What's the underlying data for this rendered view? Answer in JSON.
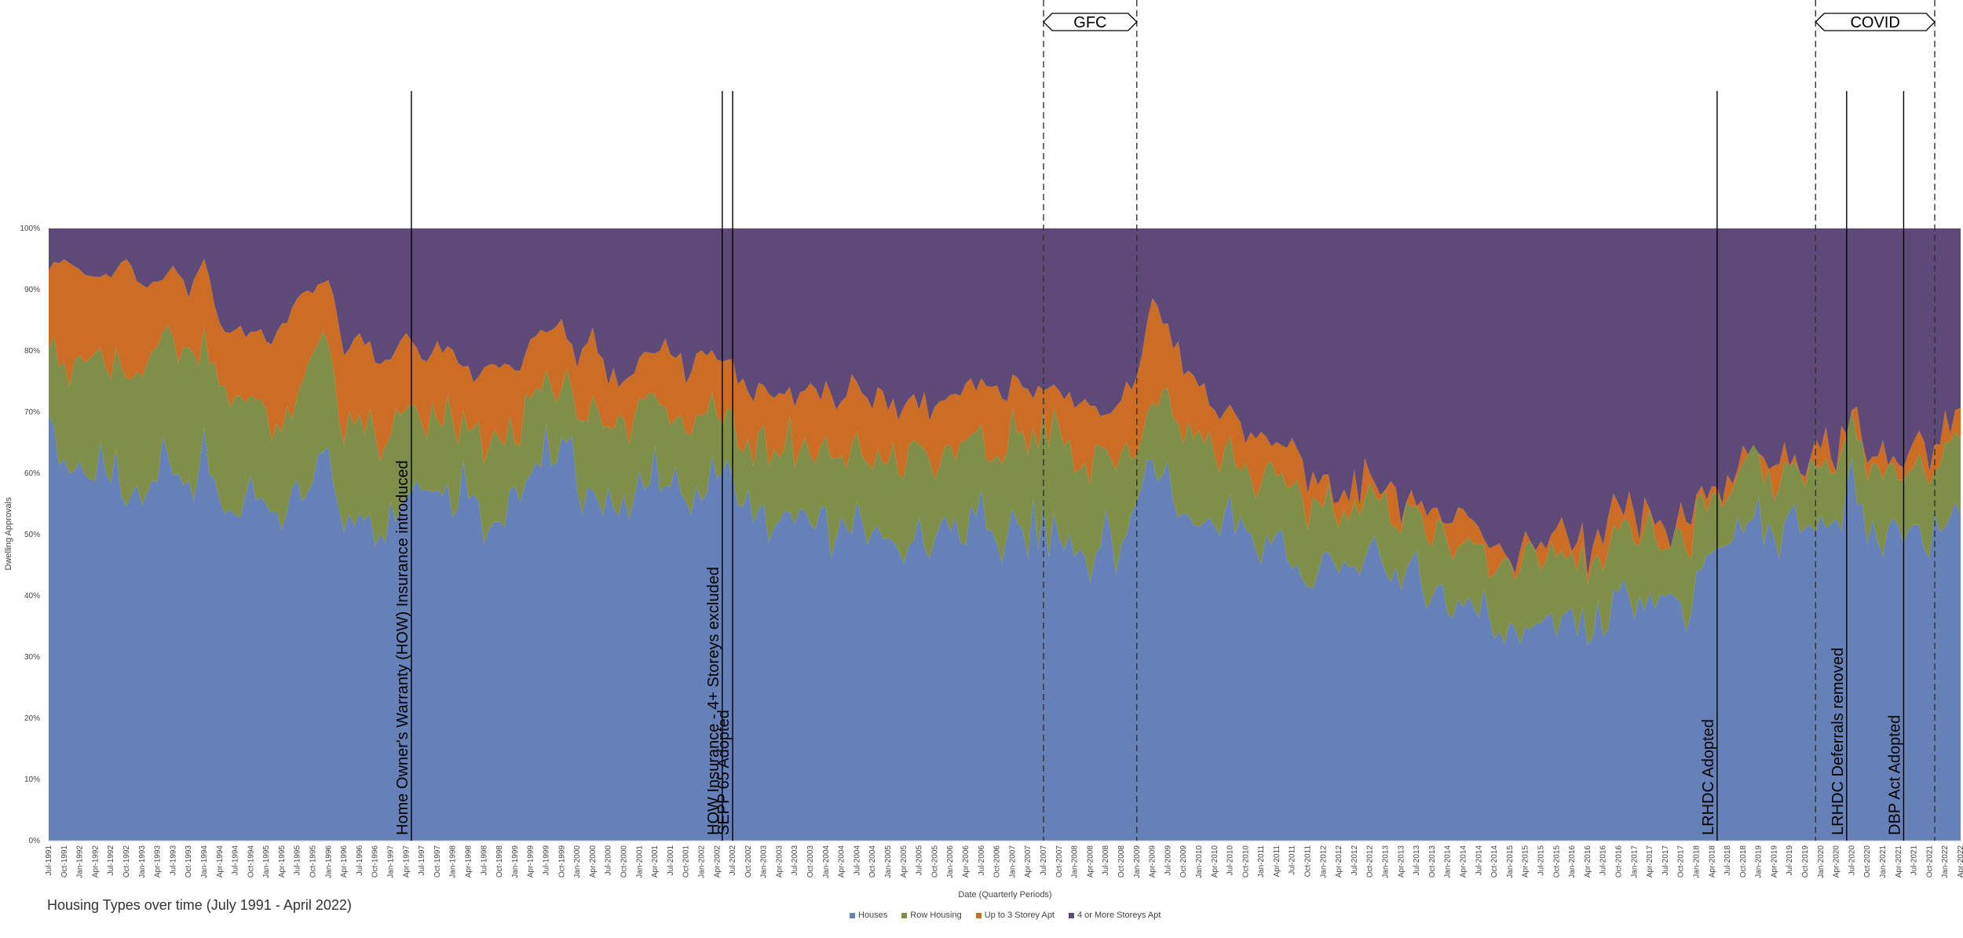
{
  "caption": "Housing Types over time (July 1991 - April 2022)",
  "chart_data": {
    "type": "area",
    "stacked": "percent",
    "title": "",
    "xlabel": "Date (Quarterly Periods)",
    "ylabel": "Dwelling Approvals",
    "ylim": [
      0,
      100
    ],
    "yticks": [
      "0%",
      "10%",
      "20%",
      "30%",
      "40%",
      "50%",
      "60%",
      "70%",
      "80%",
      "90%",
      "100%"
    ],
    "x_start": "1991-07",
    "x_end": "2022-04",
    "x_resolution": "monthly",
    "x_tick_labels": [
      "Jul-1991",
      "Oct-1991",
      "Jan-1992",
      "Apr-1992",
      "Jul-1992",
      "Oct-1992",
      "Jan-1993",
      "Apr-1993",
      "Jul-1993",
      "Oct-1993",
      "Jan-1994",
      "Apr-1994",
      "Jul-1994",
      "Oct-1994",
      "Jan-1995",
      "Apr-1995",
      "Jul-1995",
      "Oct-1995",
      "Jan-1996",
      "Apr-1996",
      "Jul-1996",
      "Oct-1996",
      "Jan-1997",
      "Apr-1997",
      "Jul-1997",
      "Oct-1997",
      "Jan-1998",
      "Apr-1998",
      "Jul-1998",
      "Oct-1998",
      "Jan-1999",
      "Apr-1999",
      "Jul-1999",
      "Oct-1999",
      "Jan-2000",
      "Apr-2000",
      "Jul-2000",
      "Oct-2000",
      "Jan-2001",
      "Apr-2001",
      "Jul-2001",
      "Oct-2001",
      "Jan-2002",
      "Apr-2002",
      "Jul-2002",
      "Oct-2002",
      "Jan-2003",
      "Apr-2003",
      "Jul-2003",
      "Oct-2003",
      "Jan-2004",
      "Apr-2004",
      "Jul-2004",
      "Oct-2004",
      "Jan-2005",
      "Apr-2005",
      "Jul-2005",
      "Oct-2005",
      "Jan-2006",
      "Apr-2006",
      "Jul-2006",
      "Oct-2006",
      "Jan-2007",
      "Apr-2007",
      "Jul-2007",
      "Oct-2007",
      "Jan-2008",
      "Apr-2008",
      "Jul-2008",
      "Oct-2008",
      "Jan-2009",
      "Apr-2009",
      "Jul-2009",
      "Oct-2009",
      "Jan-2010",
      "Apr-2010",
      "Jul-2010",
      "Oct-2010",
      "Jan-2011",
      "Apr-2011",
      "Jul-2011",
      "Oct-2011",
      "Jan-2012",
      "Apr-2012",
      "Jul-2012",
      "Oct-2012",
      "Jan-2013",
      "Apr-2013",
      "Jul-2013",
      "Oct-2013",
      "Jan-2014",
      "Apr-2014",
      "Jul-2014",
      "Oct-2014",
      "Jan-2015",
      "Apr-2015",
      "Jul-2015",
      "Oct-2015",
      "Jan-2016",
      "Apr-2016",
      "Jul-2016",
      "Oct-2016",
      "Jan-2017",
      "Apr-2017",
      "Jul-2017",
      "Oct-2017",
      "Jan-2018",
      "Apr-2018",
      "Jul-2018",
      "Oct-2018",
      "Jan-2019",
      "Apr-2019",
      "Jul-2019",
      "Oct-2019",
      "Jan-2020",
      "Apr-2020",
      "Jul-2020",
      "Oct-2020",
      "Jan-2021",
      "Apr-2021",
      "Jul-2021",
      "Oct-2021",
      "Jan-2022",
      "Apr-2022"
    ],
    "series_order": [
      "Houses",
      "Row Housing",
      "Up to 3 Storey Apt",
      "4 or More Storeys Apt"
    ],
    "series_colors": [
      "#6581B8",
      "#7F8F48",
      "#CC6D26",
      "#5D4A78"
    ],
    "quarterly_series": {
      "x": [
        "Jul-1991",
        "Oct-1991",
        "Jan-1992",
        "Apr-1992",
        "Jul-1992",
        "Oct-1992",
        "Jan-1993",
        "Apr-1993",
        "Jul-1993",
        "Oct-1993",
        "Jan-1994",
        "Apr-1994",
        "Jul-1994",
        "Oct-1994",
        "Jan-1995",
        "Apr-1995",
        "Jul-1995",
        "Oct-1995",
        "Jan-1996",
        "Apr-1996",
        "Jul-1996",
        "Oct-1996",
        "Jan-1997",
        "Apr-1997",
        "Jul-1997",
        "Oct-1997",
        "Jan-1998",
        "Apr-1998",
        "Jul-1998",
        "Oct-1998",
        "Jan-1999",
        "Apr-1999",
        "Jul-1999",
        "Oct-1999",
        "Jan-2000",
        "Apr-2000",
        "Jul-2000",
        "Oct-2000",
        "Jan-2001",
        "Apr-2001",
        "Jul-2001",
        "Oct-2001",
        "Jan-2002",
        "Apr-2002",
        "Jul-2002",
        "Oct-2002",
        "Jan-2003",
        "Apr-2003",
        "Jul-2003",
        "Oct-2003",
        "Jan-2004",
        "Apr-2004",
        "Jul-2004",
        "Oct-2004",
        "Jan-2005",
        "Apr-2005",
        "Jul-2005",
        "Oct-2005",
        "Jan-2006",
        "Apr-2006",
        "Jul-2006",
        "Oct-2006",
        "Jan-2007",
        "Apr-2007",
        "Jul-2007",
        "Oct-2007",
        "Jan-2008",
        "Apr-2008",
        "Jul-2008",
        "Oct-2008",
        "Jan-2009",
        "Apr-2009",
        "Jul-2009",
        "Oct-2009",
        "Jan-2010",
        "Apr-2010",
        "Jul-2010",
        "Oct-2010",
        "Jan-2011",
        "Apr-2011",
        "Jul-2011",
        "Oct-2011",
        "Jan-2012",
        "Apr-2012",
        "Jul-2012",
        "Oct-2012",
        "Jan-2013",
        "Apr-2013",
        "Jul-2013",
        "Oct-2013",
        "Jan-2014",
        "Apr-2014",
        "Jul-2014",
        "Oct-2014",
        "Jan-2015",
        "Apr-2015",
        "Jul-2015",
        "Oct-2015",
        "Jan-2016",
        "Apr-2016",
        "Jul-2016",
        "Oct-2016",
        "Jan-2017",
        "Apr-2017",
        "Jul-2017",
        "Oct-2017",
        "Jan-2018",
        "Apr-2018",
        "Jul-2018",
        "Oct-2018",
        "Jan-2019",
        "Apr-2019",
        "Jul-2019",
        "Oct-2019",
        "Jan-2020",
        "Apr-2020",
        "Jul-2020",
        "Oct-2020",
        "Jan-2021",
        "Apr-2021",
        "Jul-2021",
        "Oct-2021",
        "Jan-2022",
        "Apr-2022"
      ],
      "series": [
        {
          "name": "Houses",
          "values": [
            67,
            61,
            63,
            59,
            62,
            55,
            58,
            60,
            63,
            58,
            62,
            55,
            52,
            57,
            54,
            52,
            61,
            60,
            62,
            52,
            57,
            52,
            53,
            58,
            60,
            58,
            57,
            58,
            54,
            52,
            56,
            60,
            63,
            67,
            58,
            59,
            54,
            55,
            60,
            58,
            59,
            57,
            58,
            58,
            58,
            52,
            52,
            49,
            53,
            50,
            52,
            50,
            52,
            50,
            50,
            47,
            50,
            48,
            52,
            51,
            53,
            49,
            52,
            50,
            53,
            49,
            50,
            46,
            49,
            47,
            53,
            62,
            58,
            53,
            54,
            52,
            55,
            50,
            48,
            50,
            46,
            43,
            45,
            42,
            45,
            44,
            46,
            43,
            42,
            42,
            38,
            40,
            38,
            36,
            36,
            33,
            38,
            35,
            36,
            35,
            37,
            42,
            40,
            38,
            40,
            38,
            42,
            44,
            48,
            51,
            52,
            48,
            52,
            47,
            54,
            50,
            60,
            50,
            50,
            49,
            52,
            49,
            55,
            55
          ]
        },
        {
          "name": "Row Housing",
          "values": [
            12,
            16,
            16,
            21,
            16,
            22,
            19,
            20,
            19,
            22,
            18,
            19,
            20,
            15,
            14,
            15,
            14,
            20,
            19,
            15,
            16,
            14,
            14,
            15,
            11,
            13,
            12,
            11,
            11,
            16,
            10,
            12,
            10,
            10,
            12,
            14,
            13,
            12,
            11,
            12,
            11,
            10,
            12,
            12,
            8,
            12,
            13,
            14,
            12,
            12,
            13,
            12,
            13,
            13,
            14,
            14,
            14,
            13,
            12,
            14,
            13,
            14,
            15,
            15,
            14,
            16,
            13,
            16,
            13,
            15,
            10,
            12,
            13,
            14,
            12,
            11,
            10,
            10,
            11,
            11,
            11,
            12,
            10,
            10,
            11,
            11,
            9,
            9,
            10,
            10,
            12,
            12,
            10,
            10,
            10,
            12,
            10,
            11,
            11,
            11,
            10,
            10,
            11,
            11,
            10,
            10,
            10,
            10,
            9,
            9,
            9,
            9,
            10,
            10,
            9,
            10,
            10,
            9,
            11,
            10,
            11,
            11,
            11,
            11
          ]
        },
        {
          "name": "Up to 3 Storey Apt",
          "values": [
            15,
            18,
            14,
            12,
            14,
            18,
            13,
            11,
            12,
            10,
            15,
            11,
            10,
            11,
            14,
            16,
            14,
            10,
            11,
            13,
            10,
            13,
            12,
            10,
            8,
            10,
            11,
            8,
            12,
            10,
            10,
            9,
            10,
            8,
            9,
            9,
            8,
            8,
            8,
            10,
            10,
            9,
            10,
            10,
            12,
            10,
            9,
            10,
            8,
            11,
            9,
            10,
            9,
            9,
            9,
            9,
            8,
            9,
            8,
            9,
            9,
            9,
            8,
            9,
            7,
            8,
            8,
            9,
            8,
            8,
            15,
            14,
            13,
            10,
            8,
            7,
            5,
            5,
            7,
            5,
            6,
            5,
            4,
            4,
            3,
            4,
            4,
            4,
            3,
            3,
            2,
            3,
            2,
            2,
            2,
            2,
            2,
            2,
            2,
            2,
            2,
            2,
            2,
            2,
            2,
            2,
            2,
            2,
            2,
            2,
            2,
            2,
            2,
            2,
            2,
            2,
            3,
            2,
            3,
            2,
            3,
            2,
            2,
            2
          ]
        },
        {
          "name": "4 or More Storeys Apt",
          "values": [
            6,
            5,
            7,
            8,
            8,
            5,
            10,
            9,
            6,
            10,
            5,
            15,
            18,
            17,
            18,
            17,
            11,
            10,
            8,
            20,
            17,
            21,
            21,
            17,
            21,
            19,
            20,
            23,
            23,
            22,
            24,
            19,
            17,
            15,
            21,
            18,
            25,
            25,
            21,
            20,
            20,
            24,
            20,
            20,
            22,
            26,
            26,
            27,
            27,
            27,
            26,
            28,
            26,
            28,
            27,
            30,
            28,
            30,
            28,
            26,
            25,
            28,
            25,
            26,
            26,
            27,
            29,
            29,
            30,
            30,
            22,
            12,
            16,
            23,
            26,
            30,
            30,
            35,
            34,
            34,
            37,
            40,
            41,
            44,
            41,
            41,
            41,
            44,
            45,
            45,
            48,
            45,
            50,
            52,
            52,
            53,
            50,
            52,
            51,
            52,
            51,
            46,
            47,
            49,
            48,
            50,
            46,
            44,
            41,
            38,
            37,
            41,
            36,
            41,
            35,
            38,
            27,
            39,
            36,
            39,
            34,
            38,
            32,
            32
          ]
        }
      ]
    },
    "annotations": [
      {
        "label": "Home Owner's Warranty (HOW) Insurance introduced",
        "date": "1997-05",
        "style": "solid"
      },
      {
        "label": "HOW Insurance - 4+ Storeys excluded",
        "date": "2002-05",
        "style": "solid"
      },
      {
        "label": "SEPP 65 Adopted",
        "date": "2002-07",
        "style": "solid"
      },
      {
        "label": "LRHDC Adopted",
        "date": "2018-05",
        "style": "solid"
      },
      {
        "label": "LRHDC Deferrals removed",
        "date": "2020-06",
        "style": "solid"
      },
      {
        "label": "DBP Act Adopted",
        "date": "2021-05",
        "style": "solid"
      }
    ],
    "periods": [
      {
        "label": "GFC",
        "start": "2007-07",
        "end": "2009-01",
        "style": "dashed"
      },
      {
        "label": "COVID",
        "start": "2019-12",
        "end": "2021-11",
        "style": "dashed"
      }
    ],
    "legend_position": "bottom-center",
    "grid": false
  }
}
